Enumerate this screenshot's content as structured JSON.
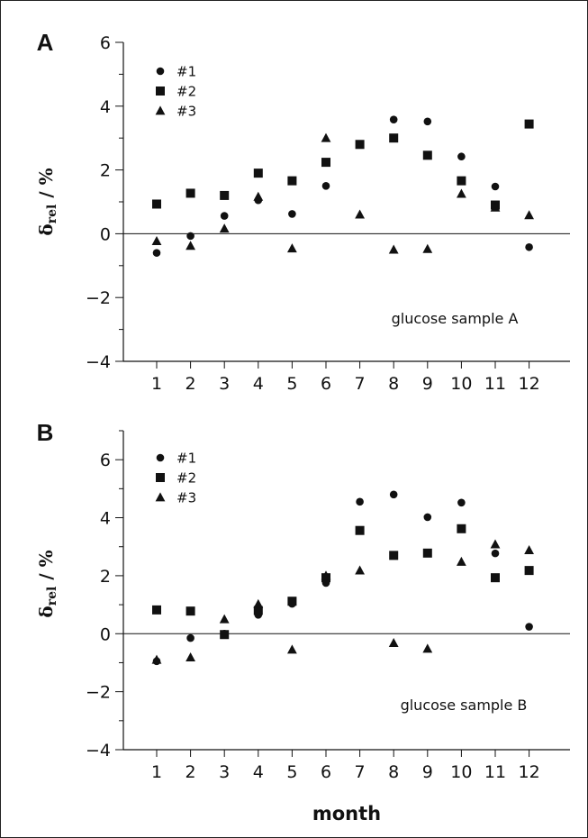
{
  "x_axis_label": "month",
  "chart_data": [
    {
      "type": "scatter",
      "panel": "A",
      "annotation": "glucose sample A",
      "ylabel": "δrel / %",
      "ylabel_main": "δ",
      "ylabel_sub": "rel",
      "ylabel_rest": " / %",
      "ylim": [
        -4,
        6
      ],
      "yticks": [
        -4,
        -2,
        0,
        2,
        4,
        6
      ],
      "ytick_labels": [
        "−4",
        "−2",
        "0",
        "2",
        "4",
        "6"
      ],
      "categories": [
        "1",
        "2",
        "3",
        "4",
        "5",
        "6",
        "7",
        "8",
        "9",
        "10",
        "11",
        "12"
      ],
      "zero_line": true,
      "legend_position": "top-left",
      "series": [
        {
          "name": "#1",
          "marker": "circle",
          "x": [
            1,
            2,
            3,
            4,
            5,
            6,
            8,
            9,
            10,
            11,
            12
          ],
          "y": [
            -0.6,
            -0.07,
            0.56,
            1.05,
            0.62,
            1.5,
            3.58,
            3.52,
            2.42,
            1.48,
            -0.42
          ]
        },
        {
          "name": "#2",
          "marker": "square",
          "x": [
            1,
            2,
            3,
            4,
            5,
            6,
            7,
            8,
            9,
            10,
            11,
            12
          ],
          "y": [
            0.93,
            1.27,
            1.2,
            1.9,
            1.66,
            2.24,
            2.8,
            3.0,
            2.46,
            1.66,
            0.9,
            3.44
          ]
        },
        {
          "name": "#3",
          "marker": "triangle",
          "x": [
            1,
            2,
            3,
            4,
            5,
            6,
            7,
            8,
            9,
            10,
            11,
            12
          ],
          "y": [
            -0.23,
            -0.38,
            0.16,
            1.16,
            -0.46,
            3.0,
            0.6,
            -0.5,
            -0.48,
            1.25,
            0.82,
            0.58
          ]
        }
      ]
    },
    {
      "type": "scatter",
      "panel": "B",
      "annotation": "glucose sample B",
      "ylabel": "δrel / %",
      "ylabel_main": "δ",
      "ylabel_sub": "rel",
      "ylabel_rest": " / %",
      "ylim": [
        -4,
        7
      ],
      "yticks": [
        -4,
        -2,
        0,
        2,
        4,
        6
      ],
      "ytick_labels": [
        "−4",
        "−2",
        "0",
        "2",
        "4",
        "6"
      ],
      "categories": [
        "1",
        "2",
        "3",
        "4",
        "5",
        "6",
        "7",
        "8",
        "9",
        "10",
        "11",
        "12"
      ],
      "zero_line": true,
      "legend_position": "top-left",
      "series": [
        {
          "name": "#1",
          "marker": "circle",
          "x": [
            1,
            2,
            3,
            4,
            5,
            6,
            7,
            8,
            9,
            10,
            11,
            12
          ],
          "y": [
            -0.95,
            -0.15,
            0.0,
            0.65,
            1.03,
            1.75,
            4.55,
            4.8,
            4.02,
            4.52,
            2.77,
            0.24
          ]
        },
        {
          "name": "#2",
          "marker": "square",
          "x": [
            1,
            2,
            3,
            4,
            5,
            6,
            7,
            8,
            9,
            10,
            11,
            12
          ],
          "y": [
            0.82,
            0.78,
            -0.03,
            0.8,
            1.12,
            1.93,
            3.56,
            2.7,
            2.78,
            3.62,
            1.93,
            2.18
          ]
        },
        {
          "name": "#3",
          "marker": "triangle",
          "x": [
            1,
            2,
            3,
            4,
            5,
            6,
            7,
            8,
            9,
            10,
            11,
            12
          ],
          "y": [
            -0.9,
            -0.82,
            0.5,
            1.02,
            -0.55,
            2.0,
            2.18,
            -0.32,
            -0.52,
            2.48,
            3.08,
            2.88
          ]
        }
      ]
    }
  ]
}
